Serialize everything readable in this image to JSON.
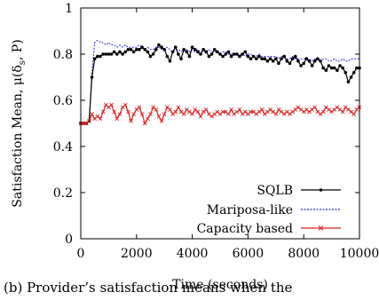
{
  "caption": "(b)  Provider’s satisfaction means when the",
  "chart_data": {
    "type": "line",
    "xlabel": "Time (seconds)",
    "ylabel": "Satisfaction Mean, μ(δs, P)",
    "ylabel_parts": {
      "prefix": "Satisfaction Mean, μ(δ",
      "sub": "s",
      "suffix": ", P)"
    },
    "xlim": [
      0,
      10000
    ],
    "ylim": [
      0,
      1
    ],
    "xticks": [
      0,
      2000,
      4000,
      6000,
      8000,
      10000
    ],
    "yticks": [
      0,
      0.2,
      0.4,
      0.6,
      0.8,
      1
    ],
    "ytick_labels": [
      "0",
      "0.2",
      "0.4",
      "0.6",
      "0.8",
      "1"
    ],
    "legend_position": "bottom-right",
    "series": [
      {
        "name": "SQLB",
        "color": "#000000",
        "marker": "dot",
        "x": [
          0,
          100,
          200,
          300,
          400,
          500,
          600,
          700,
          800,
          900,
          1000,
          1100,
          1200,
          1300,
          1400,
          1500,
          1600,
          1700,
          1800,
          1900,
          2000,
          2100,
          2200,
          2300,
          2400,
          2500,
          2600,
          2700,
          2800,
          2900,
          3000,
          3100,
          3200,
          3300,
          3400,
          3500,
          3600,
          3700,
          3800,
          3900,
          4000,
          4100,
          4200,
          4300,
          4400,
          4500,
          4600,
          4700,
          4800,
          4900,
          5000,
          5100,
          5200,
          5300,
          5400,
          5500,
          5600,
          5700,
          5800,
          5900,
          6000,
          6100,
          6200,
          6300,
          6400,
          6500,
          6600,
          6700,
          6800,
          6900,
          7000,
          7100,
          7200,
          7300,
          7400,
          7500,
          7600,
          7700,
          7800,
          7900,
          8000,
          8100,
          8200,
          8300,
          8400,
          8500,
          8600,
          8700,
          8800,
          8900,
          9000,
          9100,
          9200,
          9300,
          9400,
          9500,
          9600,
          9700,
          9800,
          9900,
          10000
        ],
        "y": [
          0.5,
          0.5,
          0.5,
          0.51,
          0.7,
          0.78,
          0.79,
          0.79,
          0.8,
          0.8,
          0.8,
          0.8,
          0.81,
          0.8,
          0.81,
          0.8,
          0.81,
          0.82,
          0.82,
          0.81,
          0.82,
          0.82,
          0.83,
          0.82,
          0.81,
          0.79,
          0.8,
          0.82,
          0.84,
          0.83,
          0.82,
          0.79,
          0.77,
          0.81,
          0.83,
          0.8,
          0.78,
          0.82,
          0.81,
          0.79,
          0.83,
          0.82,
          0.81,
          0.8,
          0.82,
          0.81,
          0.79,
          0.8,
          0.82,
          0.81,
          0.8,
          0.79,
          0.8,
          0.81,
          0.79,
          0.8,
          0.8,
          0.79,
          0.8,
          0.81,
          0.79,
          0.78,
          0.79,
          0.78,
          0.79,
          0.78,
          0.78,
          0.77,
          0.78,
          0.77,
          0.78,
          0.76,
          0.78,
          0.79,
          0.77,
          0.76,
          0.78,
          0.79,
          0.77,
          0.75,
          0.76,
          0.78,
          0.77,
          0.75,
          0.77,
          0.78,
          0.77,
          0.74,
          0.73,
          0.75,
          0.74,
          0.74,
          0.73,
          0.75,
          0.74,
          0.72,
          0.68,
          0.7,
          0.72,
          0.74,
          0.74
        ]
      },
      {
        "name": "Mariposa-like",
        "color": "#2b2bd6",
        "marker": "none",
        "x": [
          0,
          100,
          200,
          300,
          400,
          500,
          600,
          700,
          800,
          900,
          1000,
          1100,
          1200,
          1300,
          1400,
          1500,
          1600,
          1700,
          1800,
          1900,
          2000,
          2100,
          2200,
          2300,
          2400,
          2500,
          2600,
          2700,
          2800,
          2900,
          3000,
          3100,
          3200,
          3300,
          3400,
          3500,
          3600,
          3700,
          3800,
          3900,
          4000,
          4100,
          4200,
          4300,
          4400,
          4500,
          4600,
          4700,
          4800,
          4900,
          5000,
          5100,
          5200,
          5300,
          5400,
          5500,
          5600,
          5700,
          5800,
          5900,
          6000,
          6100,
          6200,
          6300,
          6400,
          6500,
          6600,
          6700,
          6800,
          6900,
          7000,
          7100,
          7200,
          7300,
          7400,
          7500,
          7600,
          7700,
          7800,
          7900,
          8000,
          8100,
          8200,
          8300,
          8400,
          8500,
          8600,
          8700,
          8800,
          8900,
          9000,
          9100,
          9200,
          9300,
          9400,
          9500,
          9600,
          9700,
          9800,
          9900,
          10000
        ],
        "y": [
          0.5,
          0.5,
          0.5,
          0.51,
          0.72,
          0.85,
          0.86,
          0.85,
          0.85,
          0.84,
          0.85,
          0.84,
          0.84,
          0.83,
          0.84,
          0.83,
          0.84,
          0.83,
          0.83,
          0.83,
          0.83,
          0.84,
          0.83,
          0.82,
          0.83,
          0.82,
          0.82,
          0.83,
          0.83,
          0.82,
          0.82,
          0.83,
          0.82,
          0.81,
          0.82,
          0.82,
          0.81,
          0.82,
          0.82,
          0.81,
          0.82,
          0.81,
          0.82,
          0.81,
          0.81,
          0.81,
          0.82,
          0.81,
          0.81,
          0.81,
          0.8,
          0.81,
          0.81,
          0.8,
          0.8,
          0.8,
          0.8,
          0.8,
          0.8,
          0.79,
          0.8,
          0.8,
          0.79,
          0.79,
          0.8,
          0.79,
          0.79,
          0.79,
          0.79,
          0.79,
          0.79,
          0.78,
          0.79,
          0.79,
          0.78,
          0.78,
          0.79,
          0.78,
          0.78,
          0.78,
          0.78,
          0.78,
          0.78,
          0.77,
          0.78,
          0.78,
          0.77,
          0.78,
          0.78,
          0.77,
          0.77,
          0.78,
          0.77,
          0.77,
          0.78,
          0.77,
          0.77,
          0.78,
          0.78,
          0.78,
          0.78
        ]
      },
      {
        "name": "Capacity based",
        "color": "#e02020",
        "marker": "x",
        "x": [
          0,
          100,
          200,
          300,
          400,
          500,
          600,
          700,
          800,
          900,
          1000,
          1100,
          1200,
          1300,
          1400,
          1500,
          1600,
          1700,
          1800,
          1900,
          2000,
          2100,
          2200,
          2300,
          2400,
          2500,
          2600,
          2700,
          2800,
          2900,
          3000,
          3100,
          3200,
          3300,
          3400,
          3500,
          3600,
          3700,
          3800,
          3900,
          4000,
          4100,
          4200,
          4300,
          4400,
          4500,
          4600,
          4700,
          4800,
          4900,
          5000,
          5100,
          5200,
          5300,
          5400,
          5500,
          5600,
          5700,
          5800,
          5900,
          6000,
          6100,
          6200,
          6300,
          6400,
          6500,
          6600,
          6700,
          6800,
          6900,
          7000,
          7100,
          7200,
          7300,
          7400,
          7500,
          7600,
          7700,
          7800,
          7900,
          8000,
          8100,
          8200,
          8300,
          8400,
          8500,
          8600,
          8700,
          8800,
          8900,
          9000,
          9100,
          9200,
          9300,
          9400,
          9500,
          9600,
          9700,
          9800,
          9900,
          10000
        ],
        "y": [
          0.5,
          0.5,
          0.5,
          0.51,
          0.54,
          0.52,
          0.53,
          0.52,
          0.55,
          0.58,
          0.57,
          0.58,
          0.55,
          0.52,
          0.54,
          0.57,
          0.58,
          0.55,
          0.51,
          0.54,
          0.56,
          0.57,
          0.54,
          0.5,
          0.52,
          0.54,
          0.57,
          0.56,
          0.53,
          0.51,
          0.54,
          0.57,
          0.56,
          0.54,
          0.55,
          0.57,
          0.55,
          0.54,
          0.56,
          0.55,
          0.54,
          0.56,
          0.55,
          0.53,
          0.55,
          0.56,
          0.54,
          0.53,
          0.54,
          0.55,
          0.54,
          0.55,
          0.55,
          0.54,
          0.56,
          0.54,
          0.55,
          0.56,
          0.54,
          0.55,
          0.54,
          0.55,
          0.55,
          0.54,
          0.55,
          0.56,
          0.54,
          0.55,
          0.56,
          0.55,
          0.54,
          0.56,
          0.55,
          0.54,
          0.55,
          0.54,
          0.55,
          0.56,
          0.57,
          0.56,
          0.55,
          0.56,
          0.55,
          0.56,
          0.57,
          0.55,
          0.54,
          0.55,
          0.57,
          0.56,
          0.55,
          0.56,
          0.57,
          0.56,
          0.55,
          0.57,
          0.56,
          0.55,
          0.54,
          0.56,
          0.57
        ]
      }
    ]
  }
}
